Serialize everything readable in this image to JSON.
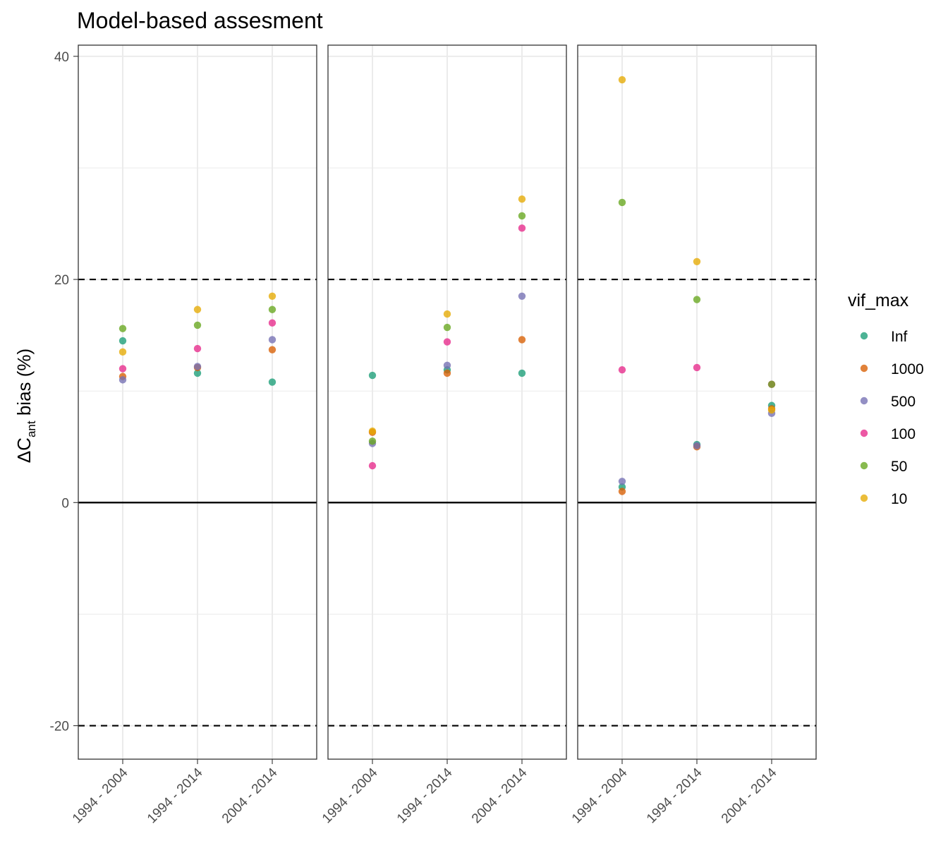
{
  "chart_data": {
    "type": "scatter",
    "title": "Model-based assesment",
    "ylabel": {
      "prefix": "ΔC",
      "subscript": "ant",
      "suffix": " bias (%)"
    },
    "xlabel": "",
    "ylim": [
      -23,
      41
    ],
    "yticks": [
      -20,
      0,
      20,
      40
    ],
    "ytick_labels": [
      "-20",
      "0",
      "20",
      "40"
    ],
    "categories": [
      "1994 - 2004",
      "1994 - 2014",
      "2004 - 2014"
    ],
    "reference_lines": {
      "solid": [
        0
      ],
      "dashed": [
        20,
        -20
      ]
    },
    "grid": true,
    "legend": {
      "title": "vif_max",
      "position": "right"
    },
    "series": [
      {
        "name": "Inf",
        "color": "#1B9E77"
      },
      {
        "name": "1000",
        "color": "#D95F02"
      },
      {
        "name": "500",
        "color": "#7570B3"
      },
      {
        "name": "100",
        "color": "#E7298A"
      },
      {
        "name": "50",
        "color": "#66A61E"
      },
      {
        "name": "10",
        "color": "#E6AB02"
      }
    ],
    "panels": [
      {
        "values": {
          "Inf": [
            14.5,
            11.6,
            10.8
          ],
          "1000": [
            11.3,
            12.1,
            13.7
          ],
          "500": [
            11.0,
            12.2,
            14.6
          ],
          "100": [
            12.0,
            13.8,
            16.1
          ],
          "50": [
            15.6,
            15.9,
            17.3
          ],
          "10": [
            13.5,
            17.3,
            18.5
          ]
        }
      },
      {
        "values": {
          "Inf": [
            11.4,
            11.9,
            11.6
          ],
          "1000": [
            6.3,
            11.6,
            14.6
          ],
          "500": [
            5.3,
            12.3,
            18.5
          ],
          "100": [
            3.3,
            14.4,
            24.6
          ],
          "50": [
            5.5,
            15.7,
            25.7
          ],
          "10": [
            6.4,
            16.9,
            27.2
          ]
        }
      },
      {
        "values": {
          "Inf": [
            1.4,
            5.2,
            8.7
          ],
          "1000": [
            1.0,
            5.0,
            8.4
          ],
          "500": [
            1.9,
            5.1,
            8.0
          ],
          "100": [
            11.9,
            12.1,
            10.6
          ],
          "50": [
            26.9,
            18.2,
            10.6
          ],
          "10": [
            37.9,
            21.6,
            8.3
          ]
        }
      }
    ]
  }
}
